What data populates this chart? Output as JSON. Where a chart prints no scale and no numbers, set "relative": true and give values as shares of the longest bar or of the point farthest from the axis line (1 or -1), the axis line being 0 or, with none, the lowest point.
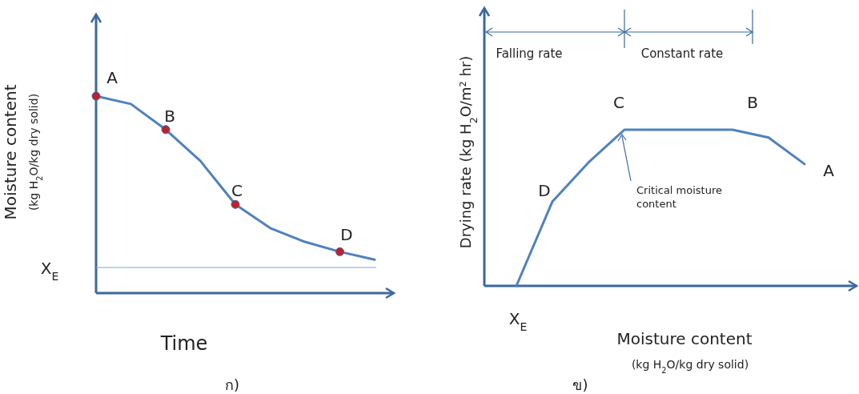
{
  "chart_data": [
    {
      "type": "line",
      "title": "ก)",
      "xlabel": "Time",
      "ylabel": "Moisture content",
      "relative": true,
      "categories": [
        null,
        null,
        null,
        null,
        null,
        null,
        null,
        null,
        null
      ],
      "series": [
        {
          "color": "#4f81bd",
          "values": [
            1.0,
            0.96,
            0.83,
            0.67,
            0.45,
            0.33,
            0.26,
            0.21,
            0.17
          ]
        }
      ],
      "ref_lines": [
        {
          "axis": "y",
          "value": 0.13,
          "label": "X$_{E}$",
          "color": "#7ea6d8"
        }
      ],
      "annotations": [
        {
          "text": "A",
          "y": 1.0
        },
        {
          "text": "B",
          "y": 0.83
        },
        {
          "text": "C",
          "y": 0.45
        },
        {
          "text": "D",
          "y": 0.21
        },
        "(kg H$_{2}$O/kg dry solid)"
      ]
    },
    {
      "type": "line",
      "title": "ข)",
      "xlabel": "Moisture content",
      "ylabel": "Drying rate (kg H$_{2}$O/m² hr)",
      "relative": true,
      "categories": [
        null,
        null,
        null,
        null,
        null,
        null,
        null,
        null,
        null
      ],
      "series": [
        {
          "color": "#4f81bd",
          "values": [
            0,
            0.54,
            0.79,
            1.0,
            1.0,
            1.0,
            1.0,
            0.95,
            0.78
          ]
        }
      ],
      "annotations": [
        "A",
        "B",
        "C",
        "D",
        "X$_{E}$",
        "Falling rate",
        "Constant rate",
        "Critical moisture content",
        "(kg H$_{2}$O/kg dry solid)"
      ]
    }
  ]
}
